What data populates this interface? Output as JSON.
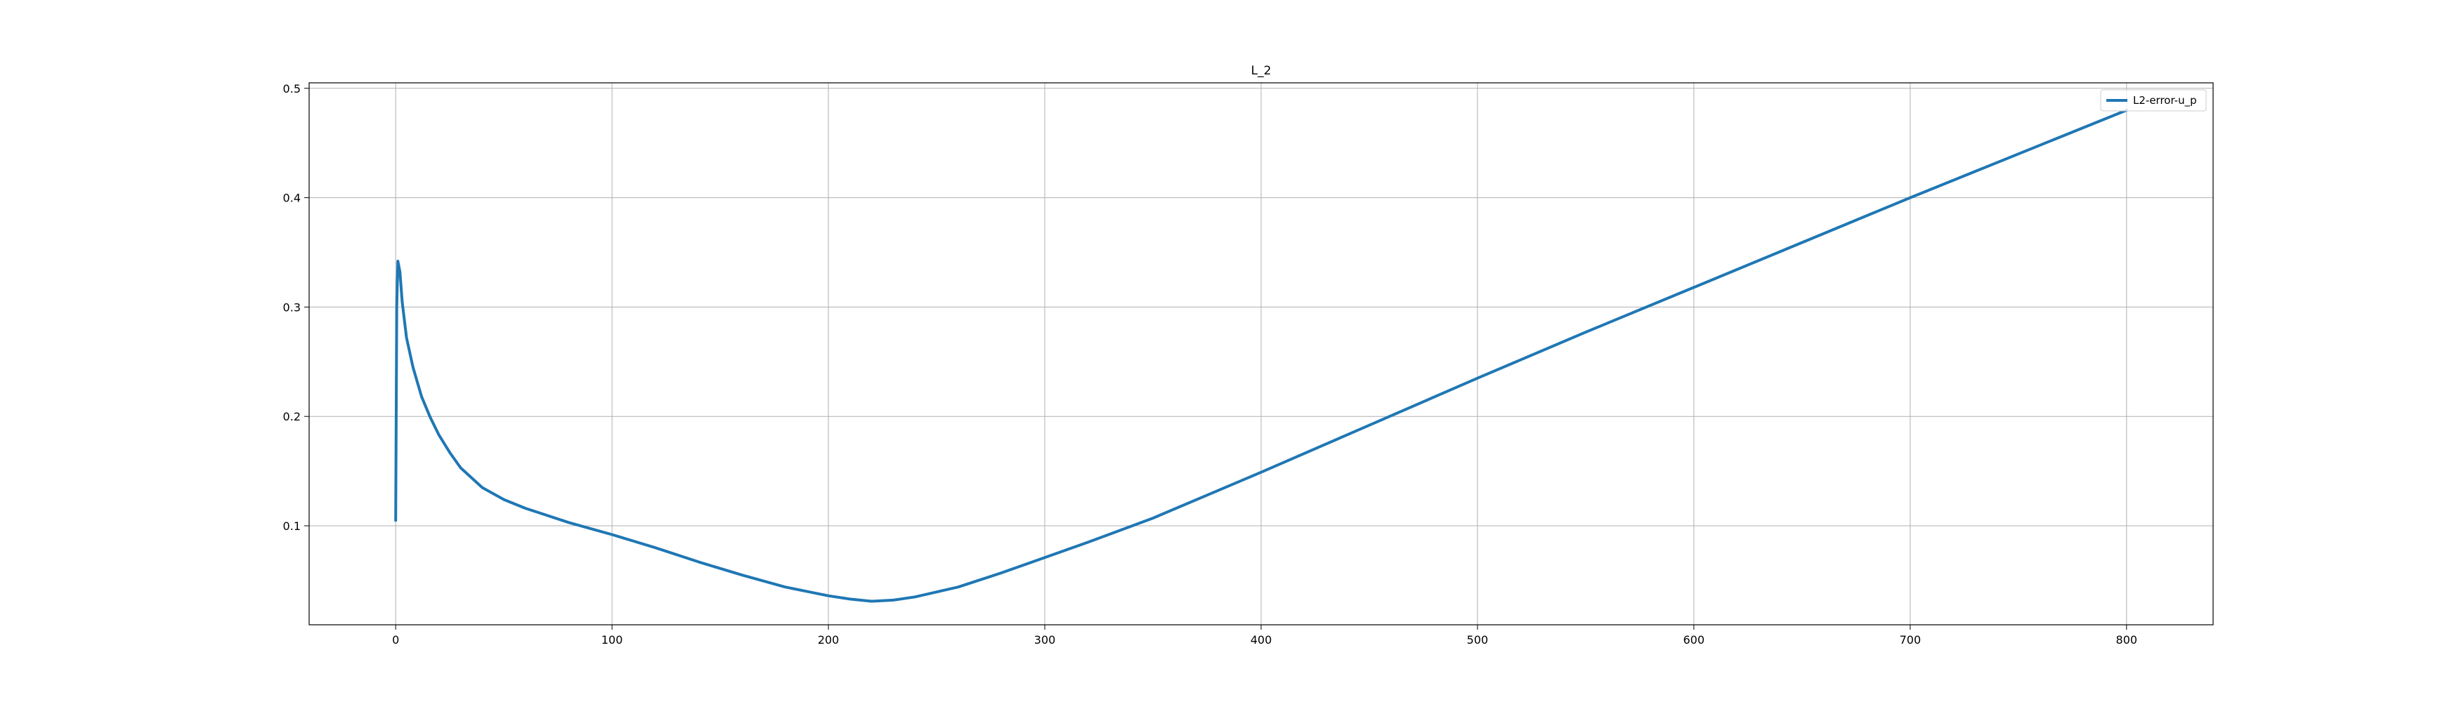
{
  "chart_data": {
    "type": "line",
    "title": "L_2",
    "xlabel": "",
    "ylabel": "",
    "xlim": [
      -40,
      840
    ],
    "ylim": [
      0.0095,
      0.505
    ],
    "xticks": [
      0,
      100,
      200,
      300,
      400,
      500,
      600,
      700,
      800
    ],
    "yticks": [
      0.1,
      0.2,
      0.3,
      0.4,
      0.5
    ],
    "xtick_labels": [
      "0",
      "100",
      "200",
      "300",
      "400",
      "500",
      "600",
      "700",
      "800"
    ],
    "ytick_labels": [
      "0.1",
      "0.2",
      "0.3",
      "0.4",
      "0.5"
    ],
    "grid": true,
    "legend_position": "top-right",
    "series": [
      {
        "name": "L2-error-u_p",
        "color": "#1f77b4",
        "x": [
          0,
          0.5,
          1,
          2,
          3,
          5,
          8,
          12,
          16,
          20,
          25,
          30,
          40,
          50,
          60,
          80,
          100,
          120,
          140,
          160,
          180,
          200,
          210,
          220,
          230,
          240,
          260,
          280,
          300,
          320,
          350,
          400,
          450,
          500,
          550,
          600,
          650,
          700,
          750,
          800
        ],
        "y": [
          0.105,
          0.3,
          0.342,
          0.332,
          0.305,
          0.272,
          0.245,
          0.218,
          0.199,
          0.183,
          0.167,
          0.153,
          0.135,
          0.124,
          0.116,
          0.103,
          0.092,
          0.08,
          0.067,
          0.055,
          0.044,
          0.036,
          0.033,
          0.031,
          0.032,
          0.035,
          0.044,
          0.057,
          0.071,
          0.085,
          0.107,
          0.149,
          0.192,
          0.235,
          0.277,
          0.318,
          0.359,
          0.4,
          0.44,
          0.48
        ]
      }
    ]
  }
}
